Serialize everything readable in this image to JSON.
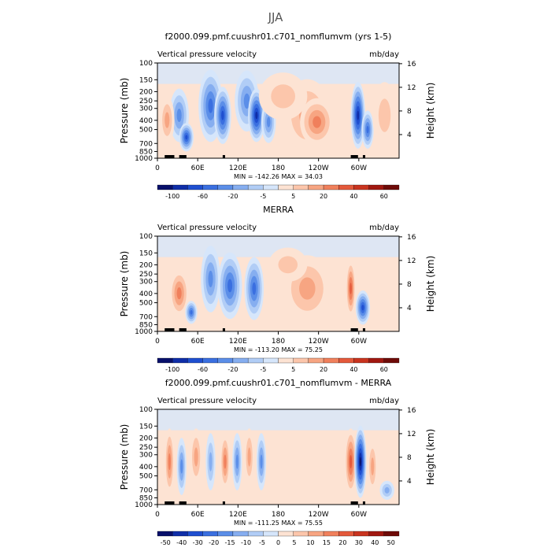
{
  "figure": {
    "title": "JJA"
  },
  "colors": {
    "neg": [
      "#08106b",
      "#0f2ea8",
      "#1f4fd0",
      "#3a6fe0",
      "#5b8ee8",
      "#86aef0",
      "#b1cdf6",
      "#d6e6fb"
    ],
    "pos": [
      "#fde3d3",
      "#fcc6ab",
      "#f7a582",
      "#f0805c",
      "#e4593b",
      "#c9341f",
      "#a11810",
      "#6e0b08"
    ]
  },
  "chart_data": [
    {
      "type": "heatmap",
      "title": "f2000.099.pmf.cuushr01.c701_nomflumvm (yrs 1-5)",
      "left_label": "Vertical pressure velocity",
      "right_label": "mb/day",
      "ylabel": "Pressure (mb)",
      "ylabel2": "Height (km)",
      "xticks": [
        "0",
        "60E",
        "120E",
        "180",
        "120W",
        "60W"
      ],
      "yticks": [
        "100",
        "150",
        "200",
        "250",
        "300",
        "400",
        "500",
        "700",
        "850",
        "1000"
      ],
      "y2ticks": [
        "16",
        "12",
        "8",
        "4"
      ],
      "stats": "MIN = -142.26   MAX =  34.03",
      "colorbar_labels": [
        "-100",
        "-60",
        "-20",
        "-5",
        "5",
        "20",
        "40",
        "60"
      ]
    },
    {
      "type": "heatmap",
      "title": "MERRA",
      "left_label": "Vertical pressure velocity",
      "right_label": "mb/day",
      "ylabel": "Pressure (mb)",
      "ylabel2": "Height (km)",
      "xticks": [
        "0",
        "60E",
        "120E",
        "180",
        "120W",
        "60W"
      ],
      "yticks": [
        "100",
        "150",
        "200",
        "250",
        "300",
        "400",
        "500",
        "700",
        "850",
        "1000"
      ],
      "y2ticks": [
        "16",
        "12",
        "8",
        "4"
      ],
      "stats": "MIN = -113.20   MAX =  75.25",
      "colorbar_labels": [
        "-100",
        "-60",
        "-20",
        "-5",
        "5",
        "20",
        "40",
        "60"
      ]
    },
    {
      "type": "heatmap",
      "title": "f2000.099.pmf.cuushr01.c701_nomflumvm - MERRA",
      "left_label": "Vertical pressure velocity",
      "right_label": "mb/day",
      "ylabel": "Pressure (mb)",
      "ylabel2": "Height (km)",
      "xticks": [
        "0",
        "60E",
        "120E",
        "180",
        "120W",
        "60W"
      ],
      "yticks": [
        "100",
        "150",
        "200",
        "250",
        "300",
        "400",
        "500",
        "700",
        "850",
        "1000"
      ],
      "y2ticks": [
        "16",
        "12",
        "8",
        "4"
      ],
      "stats": "MIN = -111.25   MAX =  75.55",
      "colorbar_labels": [
        "-50",
        "-40",
        "-30",
        "-20",
        "-15",
        "-10",
        "-5",
        "0",
        "5",
        "10",
        "15",
        "20",
        "30",
        "40",
        "50"
      ]
    }
  ]
}
